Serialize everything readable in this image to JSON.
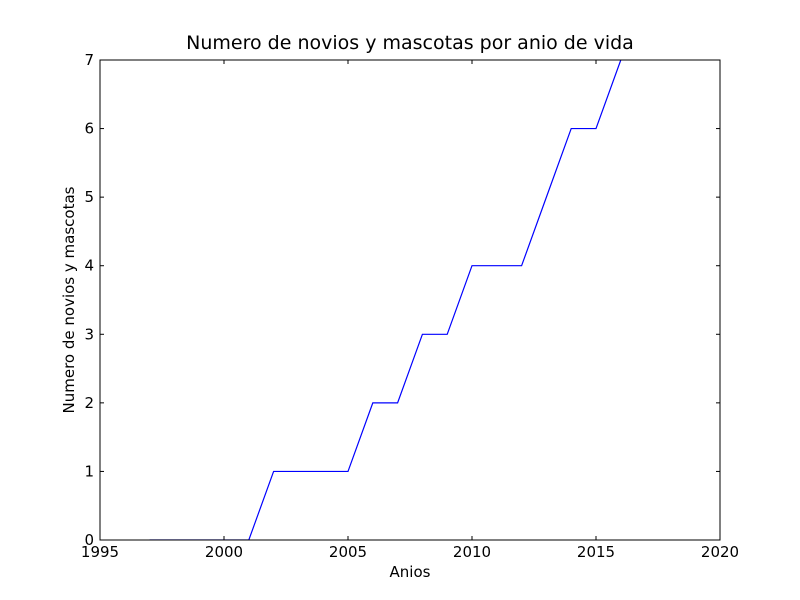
{
  "chart_data": {
    "type": "line",
    "title": "Numero de novios y mascotas por anio de vida",
    "xlabel": "Anios",
    "ylabel": "Numero de novios y mascotas",
    "xlim": [
      1995,
      2020
    ],
    "ylim": [
      0,
      7
    ],
    "x_ticks": [
      "1995",
      "2000",
      "2005",
      "2010",
      "2015",
      "2020"
    ],
    "y_ticks": [
      "0",
      "1",
      "2",
      "3",
      "4",
      "5",
      "6",
      "7"
    ],
    "grid": false,
    "legend": "none",
    "series": [
      {
        "color": "#0000ff",
        "x": [
          1997,
          1998,
          1999,
          2000,
          2001,
          2002,
          2003,
          2004,
          2005,
          2006,
          2007,
          2008,
          2009,
          2010,
          2011,
          2012,
          2013,
          2014,
          2015,
          2016
        ],
        "y": [
          0,
          0,
          0,
          0,
          0,
          1,
          1,
          1,
          1,
          2,
          2,
          3,
          3,
          4,
          4,
          4,
          5,
          6,
          6,
          7
        ]
      }
    ]
  }
}
